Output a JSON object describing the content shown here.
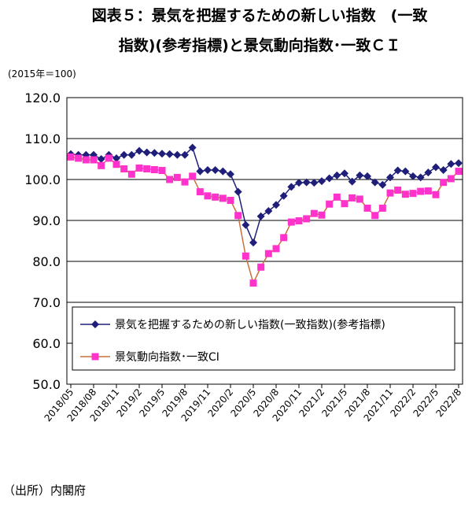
{
  "chart_data": {
    "type": "line",
    "title": [
      "図表５：景気を把握するための新しい指数　(一致",
      "指数)(参考指標)と景気動向指数･一致ＣＩ"
    ],
    "subtitle": "(2015年＝100)",
    "source": "（出所）内閣府",
    "categories": [
      "2018/05",
      null,
      null,
      "2018/08",
      null,
      null,
      "2018/11",
      null,
      null,
      "2019/2",
      null,
      null,
      "2019/5",
      null,
      null,
      "2019/8",
      null,
      null,
      "2019/11",
      null,
      null,
      "2020/2",
      null,
      null,
      "2020/5",
      null,
      null,
      "2020/8",
      null,
      null,
      "2020/11",
      null,
      null,
      "2021/2",
      null,
      null,
      "2021/5",
      null,
      null,
      "2021/8",
      null,
      null,
      "2021/11",
      null,
      null,
      "2022/2",
      null,
      null,
      "2022/5",
      null,
      null,
      "2022/8"
    ],
    "series": [
      {
        "name": "景気を把握するための新しい指数(一致指数)(参考指標)",
        "color": "#1f1f7a",
        "line_color": "#1f1f7a",
        "marker": "diamond",
        "values": [
          106.2,
          106.0,
          106.0,
          106.0,
          105.0,
          106.0,
          105.2,
          106.0,
          106.0,
          107.0,
          106.6,
          106.5,
          106.3,
          106.2,
          106.0,
          106.0,
          107.8,
          102.0,
          102.3,
          102.3,
          102.0,
          101.3,
          97.0,
          88.9,
          84.6,
          91.0,
          92.3,
          93.8,
          96.0,
          98.2,
          99.2,
          99.3,
          99.2,
          99.6,
          100.3,
          101.0,
          101.5,
          99.5,
          101.0,
          100.8,
          99.3,
          98.7,
          100.5,
          102.2,
          102.0,
          100.8,
          100.5,
          101.7,
          103.0,
          102.3,
          103.8,
          104.0
        ]
      },
      {
        "name": "景気動向指数･一致CI",
        "color": "#ff33cc",
        "line_color": "#c8703a",
        "marker": "square",
        "values": [
          105.5,
          105.2,
          104.8,
          104.8,
          103.4,
          105.2,
          103.7,
          102.6,
          101.3,
          102.8,
          102.6,
          102.4,
          102.2,
          100.0,
          100.5,
          99.4,
          100.8,
          97.0,
          96.0,
          95.7,
          95.4,
          94.9,
          91.2,
          81.3,
          74.7,
          78.6,
          81.9,
          83.1,
          85.8,
          89.6,
          89.9,
          90.4,
          91.7,
          91.3,
          94.0,
          95.7,
          94.1,
          95.5,
          95.2,
          93.0,
          91.2,
          93.0,
          96.7,
          97.4,
          96.4,
          96.6,
          97.1,
          97.2,
          96.3,
          99.3,
          100.2,
          102.0
        ]
      }
    ],
    "ylim": [
      50,
      120
    ],
    "yticks": [
      {
        "value": 50,
        "label": "50.0"
      },
      {
        "value": 60,
        "label": "60.0"
      },
      {
        "value": 70,
        "label": "70.0"
      },
      {
        "value": 80,
        "label": "80.0"
      },
      {
        "value": 90,
        "label": "90.0"
      },
      {
        "value": 100,
        "label": "100.0"
      },
      {
        "value": 110,
        "label": "110.0"
      },
      {
        "value": 120,
        "label": "120.0"
      }
    ],
    "grid": true
  }
}
